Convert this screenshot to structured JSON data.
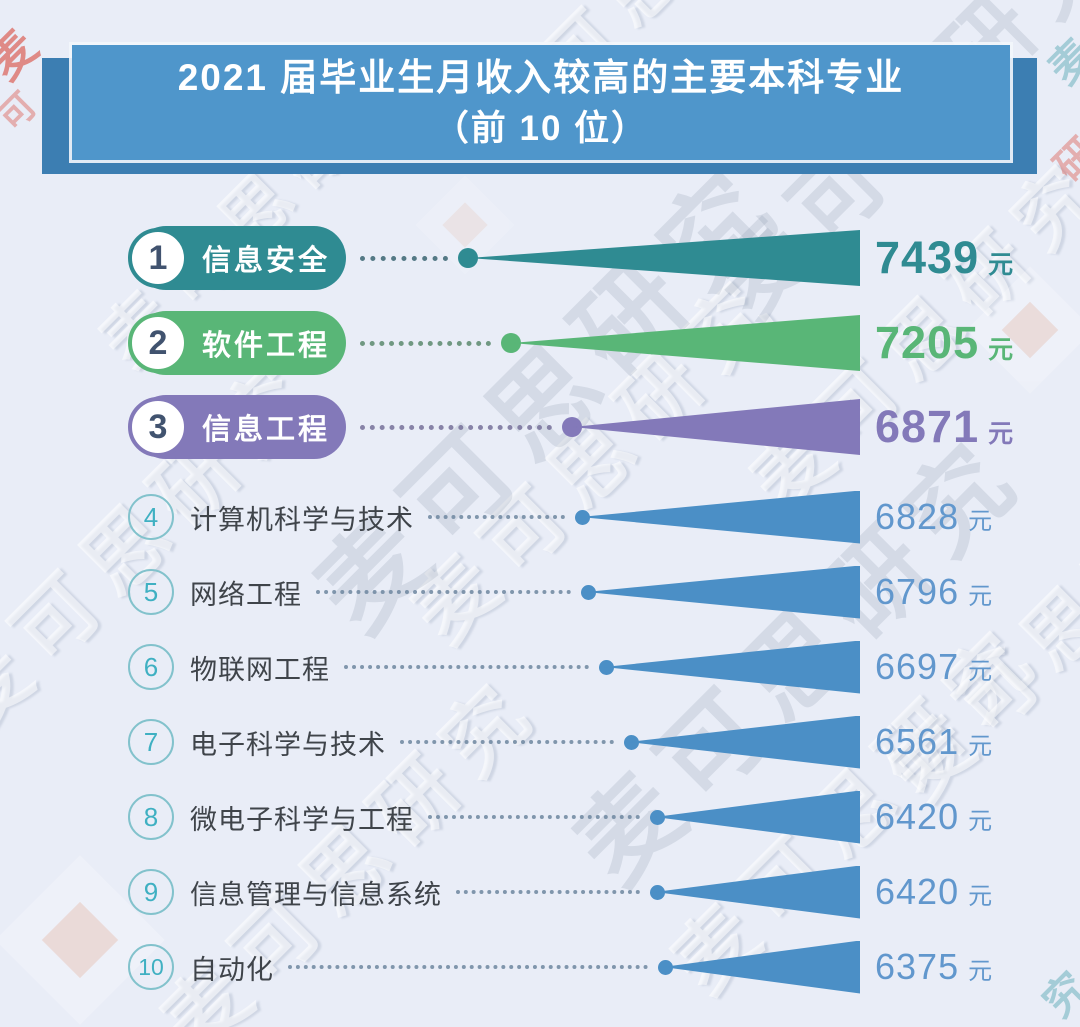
{
  "title": {
    "line1": "2021 届毕业生月收入较高的主要本科专业",
    "line2": "（前 10 位）"
  },
  "watermark": {
    "text": "麦可思研究"
  },
  "colors": {
    "background": "#E9EDF7",
    "header_light": "#4F96CB",
    "header_dark": "#3C7EB2",
    "teal": "#2F8B92",
    "green": "#59B677",
    "purple": "#8379B9",
    "blue": "#4B8FC6",
    "value_blue": "#6197CD",
    "label_dark": "#3F444A",
    "number_navy": "#41536F",
    "plain_circle_border": "#82C2CC",
    "plain_circle_number": "#3FB0C2",
    "dot_teal": "#3B6572",
    "dot_green": "#5C8A6E",
    "dot_purple": "#77719A",
    "dot_blue": "#6E87A0"
  },
  "chart_data": {
    "type": "bar",
    "orientation": "horizontal",
    "title": "2021届毕业生月收入较高的主要本科专业（前10位）",
    "categories": [
      "信息安全",
      "软件工程",
      "信息工程",
      "计算机科学与技术",
      "网络工程",
      "物联网工程",
      "电子科学与技术",
      "微电子科学与工程",
      "信息管理与信息系统",
      "自动化"
    ],
    "values": [
      7439,
      7205,
      6871,
      6828,
      6796,
      6697,
      6561,
      6420,
      6420,
      6375
    ],
    "unit": "元",
    "value_range": [
      6375,
      7439
    ],
    "legend": "none",
    "grid": "off"
  },
  "rows": [
    {
      "rank": "1",
      "style": "featured",
      "theme": "teal"
    },
    {
      "rank": "2",
      "style": "featured",
      "theme": "green"
    },
    {
      "rank": "3",
      "style": "featured",
      "theme": "purple"
    },
    {
      "rank": "4",
      "style": "plain",
      "theme": "blue"
    },
    {
      "rank": "5",
      "style": "plain",
      "theme": "blue"
    },
    {
      "rank": "6",
      "style": "plain",
      "theme": "blue"
    },
    {
      "rank": "7",
      "style": "plain",
      "theme": "blue"
    },
    {
      "rank": "8",
      "style": "plain",
      "theme": "blue"
    },
    {
      "rank": "9",
      "style": "plain",
      "theme": "blue"
    },
    {
      "rank": "10",
      "style": "plain",
      "theme": "blue"
    }
  ]
}
